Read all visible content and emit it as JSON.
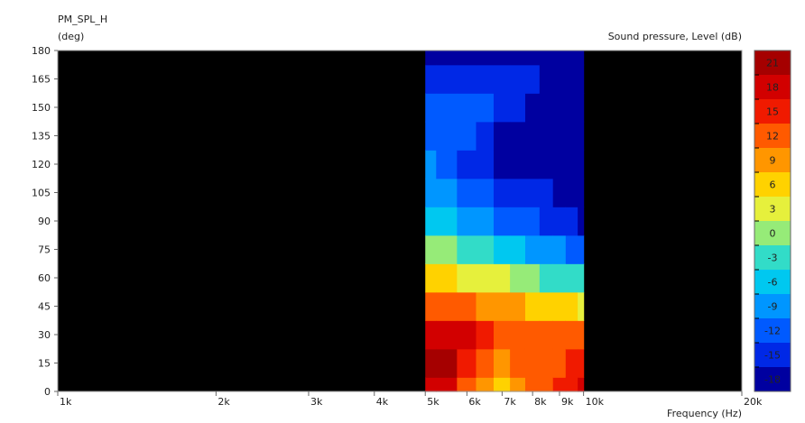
{
  "chart_data": {
    "type": "heatmap",
    "title": "PM_SPL_H",
    "y_unit_label": "(deg)",
    "colorbar_label": "Sound pressure, Level  (dB)",
    "xlabel": "Frequency  (Hz)",
    "x_scale": "log",
    "xlim": [
      1000,
      20000
    ],
    "ylim": [
      0,
      180
    ],
    "x_ticks": [
      {
        "value": 1000,
        "label": "1k"
      },
      {
        "value": 2000,
        "label": "2k"
      },
      {
        "value": 3000,
        "label": "3k"
      },
      {
        "value": 4000,
        "label": "4k"
      },
      {
        "value": 5000,
        "label": "5k"
      },
      {
        "value": 6000,
        "label": "6k"
      },
      {
        "value": 7000,
        "label": "7k"
      },
      {
        "value": 8000,
        "label": "8k"
      },
      {
        "value": 9000,
        "label": "9k"
      },
      {
        "value": 10000,
        "label": "10k"
      },
      {
        "value": 20000,
        "label": "20k"
      }
    ],
    "y_ticks": [
      {
        "value": 0,
        "label": "0"
      },
      {
        "value": 15,
        "label": "15"
      },
      {
        "value": 30,
        "label": "30"
      },
      {
        "value": 45,
        "label": "45"
      },
      {
        "value": 60,
        "label": "60"
      },
      {
        "value": 75,
        "label": "75"
      },
      {
        "value": 90,
        "label": "90"
      },
      {
        "value": 105,
        "label": "105"
      },
      {
        "value": 120,
        "label": "120"
      },
      {
        "value": 135,
        "label": "135"
      },
      {
        "value": 150,
        "label": "150"
      },
      {
        "value": 165,
        "label": "165"
      },
      {
        "value": 180,
        "label": "180"
      }
    ],
    "colorbar": {
      "levels": [
        {
          "label": "21",
          "color": "#a50000"
        },
        {
          "label": "18",
          "color": "#d20000"
        },
        {
          "label": "15",
          "color": "#f01a00"
        },
        {
          "label": "12",
          "color": "#ff5a00"
        },
        {
          "label": "9",
          "color": "#ff9600"
        },
        {
          "label": "6",
          "color": "#ffd200"
        },
        {
          "label": "3",
          "color": "#e6f03c"
        },
        {
          "label": "0",
          "color": "#96eb78"
        },
        {
          "label": "-3",
          "color": "#32dcc8"
        },
        {
          "label": "-6",
          "color": "#00c8f0"
        },
        {
          "label": "-9",
          "color": "#0096ff"
        },
        {
          "label": "-12",
          "color": "#005aff"
        },
        {
          "label": "-15",
          "color": "#0028e6"
        },
        {
          "label": "-18",
          "color": "#0000a0"
        }
      ]
    },
    "background_color": "#000000",
    "data_x_range": [
      5000,
      10000
    ],
    "series": [
      {
        "frequency": 5000,
        "level_db_by_angle": [
          18,
          21,
          18,
          12,
          6,
          0,
          -6,
          -9,
          -9,
          -12,
          -12,
          -15,
          -18
        ]
      },
      {
        "frequency": 5500,
        "level_db_by_angle": [
          18,
          21,
          18,
          12,
          6,
          0,
          -6,
          -9,
          -12,
          -12,
          -12,
          -15,
          -18
        ]
      },
      {
        "frequency": 6000,
        "level_db_by_angle": [
          12,
          15,
          18,
          12,
          3,
          -3,
          -9,
          -12,
          -15,
          -12,
          -12,
          -15,
          -18
        ]
      },
      {
        "frequency": 6500,
        "level_db_by_angle": [
          9,
          12,
          15,
          9,
          3,
          -3,
          -9,
          -12,
          -15,
          -15,
          -12,
          -15,
          -18
        ]
      },
      {
        "frequency": 7000,
        "level_db_by_angle": [
          6,
          9,
          12,
          9,
          3,
          -6,
          -12,
          -15,
          -18,
          -18,
          -15,
          -15,
          -18
        ]
      },
      {
        "frequency": 7500,
        "level_db_by_angle": [
          9,
          12,
          12,
          9,
          0,
          -6,
          -12,
          -15,
          -18,
          -18,
          -15,
          -15,
          -18
        ]
      },
      {
        "frequency": 8000,
        "level_db_by_angle": [
          12,
          12,
          12,
          6,
          0,
          -9,
          -12,
          -15,
          -18,
          -18,
          -18,
          -15,
          -18
        ]
      },
      {
        "frequency": 8500,
        "level_db_by_angle": [
          12,
          12,
          12,
          6,
          -3,
          -9,
          -15,
          -15,
          -18,
          -18,
          -18,
          -18,
          -18
        ]
      },
      {
        "frequency": 9000,
        "level_db_by_angle": [
          15,
          12,
          12,
          6,
          -3,
          -9,
          -15,
          -18,
          -18,
          -18,
          -18,
          -18,
          -18
        ]
      },
      {
        "frequency": 9500,
        "level_db_by_angle": [
          15,
          15,
          12,
          6,
          -3,
          -12,
          -15,
          -18,
          -18,
          -18,
          -18,
          -18,
          -18
        ]
      },
      {
        "frequency": 10000,
        "level_db_by_angle": [
          18,
          15,
          12,
          3,
          -3,
          -12,
          -18,
          -18,
          -18,
          -18,
          -18,
          -18,
          -18
        ]
      }
    ],
    "angles": [
      0,
      15,
      30,
      45,
      60,
      75,
      90,
      105,
      120,
      135,
      150,
      165,
      180
    ]
  }
}
